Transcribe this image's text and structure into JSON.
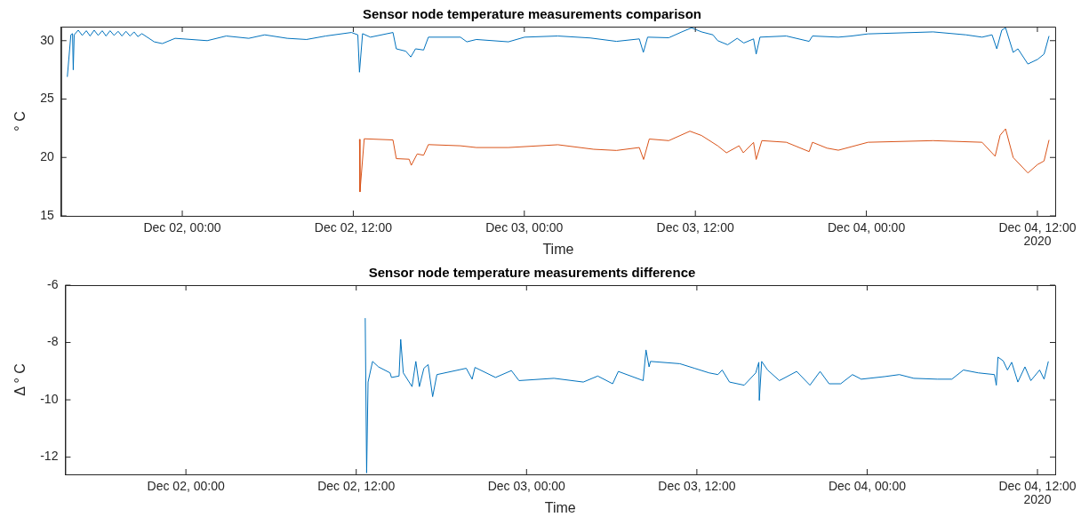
{
  "chart_data": [
    {
      "type": "line",
      "title": "Sensor node temperature measurements comparison",
      "xlabel": "Time",
      "ylabel": "° C",
      "annotations": [
        "2020"
      ],
      "xlim": [
        "2020-12-01T15:30",
        "2020-12-04T13:15"
      ],
      "ylim": [
        15,
        31.2
      ],
      "yticks": [
        15,
        20,
        25,
        30
      ],
      "xticks": [
        {
          "value": "2020-12-02T00:00",
          "label": "Dec 02, 00:00"
        },
        {
          "value": "2020-12-02T12:00",
          "label": "Dec 02, 12:00"
        },
        {
          "value": "2020-12-03T00:00",
          "label": "Dec 03, 00:00"
        },
        {
          "value": "2020-12-03T12:00",
          "label": "Dec 03, 12:00"
        },
        {
          "value": "2020-12-04T00:00",
          "label": "Dec 04, 00:00"
        },
        {
          "value": "2020-12-04T12:00",
          "label": "Dec 04, 12:00"
        }
      ],
      "grid": false,
      "legend": false,
      "marker": "none",
      "line_style": "solid",
      "series": [
        {
          "color": "#0072bd",
          "x": [
            "2020-12-01T15:56",
            "2020-12-01T16:11",
            "2020-12-01T16:18",
            "2020-12-01T16:21",
            "2020-12-01T16:25",
            "2020-12-01T16:42",
            "2020-12-01T16:59",
            "2020-12-01T17:16",
            "2020-12-01T17:32",
            "2020-12-01T17:49",
            "2020-12-01T18:06",
            "2020-12-01T18:23",
            "2020-12-01T18:39",
            "2020-12-01T18:56",
            "2020-12-01T19:13",
            "2020-12-01T19:30",
            "2020-12-01T19:46",
            "2020-12-01T20:03",
            "2020-12-01T20:20",
            "2020-12-01T20:37",
            "2020-12-01T20:53",
            "2020-12-01T21:10",
            "2020-12-01T22:02",
            "2020-12-01T22:36",
            "2020-12-01T23:30",
            "2020-12-02T01:45",
            "2020-12-02T03:05",
            "2020-12-02T04:40",
            "2020-12-02T05:47",
            "2020-12-02T07:22",
            "2020-12-02T08:43",
            "2020-12-02T10:04",
            "2020-12-02T11:52",
            "2020-12-02T12:19",
            "2020-12-02T12:26",
            "2020-12-02T12:39",
            "2020-12-02T13:12",
            "2020-12-02T14:47",
            "2020-12-02T15:01",
            "2020-12-02T15:41",
            "2020-12-02T16:02",
            "2020-12-02T16:22",
            "2020-12-02T16:56",
            "2020-12-02T17:16",
            "2020-12-02T19:31",
            "2020-12-02T19:58",
            "2020-12-02T20:38",
            "2020-12-02T22:53",
            "2020-12-03T00:01",
            "2020-12-03T02:21",
            "2020-12-03T04:38",
            "2020-12-03T06:28",
            "2020-12-03T08:04",
            "2020-12-03T08:21",
            "2020-12-03T08:39",
            "2020-12-03T10:08",
            "2020-12-03T11:03",
            "2020-12-03T11:44",
            "2020-12-03T12:26",
            "2020-12-03T13:14",
            "2020-12-03T13:34",
            "2020-12-03T14:16",
            "2020-12-03T14:56",
            "2020-12-03T15:24",
            "2020-12-03T16:05",
            "2020-12-03T16:16",
            "2020-12-03T16:32",
            "2020-12-03T18:23",
            "2020-12-03T19:59",
            "2020-12-03T20:13",
            "2020-12-03T22:02",
            "2020-12-03T22:58",
            "2020-12-04T00:07",
            "2020-12-04T04:41",
            "2020-12-04T06:59",
            "2020-12-04T08:07",
            "2020-12-04T08:49",
            "2020-12-04T09:09",
            "2020-12-04T09:30",
            "2020-12-04T09:46",
            "2020-12-04T10:18",
            "2020-12-04T10:38",
            "2020-12-04T11:20",
            "2020-12-04T12:01",
            "2020-12-04T12:28",
            "2020-12-04T12:49"
          ],
          "values": [
            26.9,
            30.5,
            30.6,
            27.5,
            30.5,
            30.9,
            30.45,
            30.85,
            30.4,
            30.9,
            30.45,
            30.85,
            30.4,
            30.85,
            30.45,
            30.8,
            30.4,
            30.8,
            30.4,
            30.75,
            30.35,
            30.6,
            29.9,
            29.75,
            30.2,
            30.0,
            30.4,
            30.2,
            30.5,
            30.2,
            30.1,
            30.4,
            30.7,
            30.5,
            27.3,
            30.6,
            30.3,
            30.7,
            29.3,
            29.1,
            28.6,
            29.3,
            29.2,
            30.3,
            30.3,
            29.9,
            30.1,
            29.9,
            30.3,
            30.4,
            30.23,
            29.94,
            30.15,
            29.0,
            30.3,
            30.25,
            30.75,
            31.1,
            30.75,
            30.5,
            30.0,
            29.65,
            30.2,
            29.8,
            30.15,
            28.85,
            30.3,
            30.4,
            29.94,
            30.4,
            30.3,
            30.4,
            30.58,
            30.75,
            30.5,
            30.3,
            30.5,
            29.3,
            30.9,
            31.1,
            29.0,
            29.3,
            28.0,
            28.4,
            28.85,
            30.4
          ]
        },
        {
          "color": "#d95319",
          "x": [
            "2020-12-02T12:26",
            "2020-12-02T12:28",
            "2020-12-02T12:46",
            "2020-12-02T14:47",
            "2020-12-02T15:01",
            "2020-12-02T15:55",
            "2020-12-02T16:04",
            "2020-12-02T16:29",
            "2020-12-02T16:56",
            "2020-12-02T17:16",
            "2020-12-02T19:31",
            "2020-12-02T20:38",
            "2020-12-02T22:53",
            "2020-12-03T02:21",
            "2020-12-03T04:52",
            "2020-12-03T06:28",
            "2020-12-03T08:04",
            "2020-12-03T08:22",
            "2020-12-03T08:46",
            "2020-12-03T10:08",
            "2020-12-03T11:37",
            "2020-12-03T12:26",
            "2020-12-03T13:34",
            "2020-12-03T14:11",
            "2020-12-03T15:04",
            "2020-12-03T15:22",
            "2020-12-03T16:05",
            "2020-12-03T16:16",
            "2020-12-03T16:40",
            "2020-12-03T18:23",
            "2020-12-03T19:59",
            "2020-12-03T20:13",
            "2020-12-03T21:14",
            "2020-12-03T22:02",
            "2020-12-04T00:07",
            "2020-12-04T04:41",
            "2020-12-04T08:07",
            "2020-12-04T09:02",
            "2020-12-04T09:23",
            "2020-12-04T09:46",
            "2020-12-04T10:18",
            "2020-12-04T11:20",
            "2020-12-04T12:01",
            "2020-12-04T12:28",
            "2020-12-04T12:49"
          ],
          "values": [
            21.56,
            17.05,
            21.6,
            21.5,
            19.9,
            19.85,
            19.33,
            20.3,
            20.19,
            21.1,
            21.0,
            20.85,
            20.85,
            21.09,
            20.7,
            20.6,
            20.85,
            19.83,
            21.58,
            21.44,
            22.25,
            21.88,
            21.0,
            20.4,
            21.0,
            20.4,
            21.29,
            19.83,
            21.44,
            21.3,
            20.5,
            21.3,
            20.8,
            20.62,
            21.3,
            21.44,
            21.3,
            20.1,
            21.9,
            22.45,
            20.0,
            18.67,
            19.4,
            19.7,
            21.5
          ]
        }
      ]
    },
    {
      "type": "line",
      "title": "Sensor node temperature measurements difference",
      "xlabel": "Time",
      "ylabel": "Δ ° C",
      "annotations": [
        "2020"
      ],
      "xlim": [
        "2020-12-01T15:30",
        "2020-12-04T13:15"
      ],
      "ylim": [
        -12.6,
        -6
      ],
      "yticks": [
        -12,
        -10,
        -8,
        -6
      ],
      "xticks": [
        {
          "value": "2020-12-02T00:00",
          "label": "Dec 02, 00:00"
        },
        {
          "value": "2020-12-02T12:00",
          "label": "Dec 02, 12:00"
        },
        {
          "value": "2020-12-03T00:00",
          "label": "Dec 03, 00:00"
        },
        {
          "value": "2020-12-03T12:00",
          "label": "Dec 03, 12:00"
        },
        {
          "value": "2020-12-04T00:00",
          "label": "Dec 04, 00:00"
        },
        {
          "value": "2020-12-04T12:00",
          "label": "Dec 04, 12:00"
        }
      ],
      "grid": false,
      "legend": false,
      "marker": "none",
      "line_style": "solid",
      "series": [
        {
          "color": "#0072bd",
          "x": [
            "2020-12-02T12:38",
            "2020-12-02T12:44",
            "2020-12-02T12:50",
            "2020-12-02T13:09",
            "2020-12-02T13:34",
            "2020-12-02T14:23",
            "2020-12-02T14:29",
            "2020-12-02T15:01",
            "2020-12-02T15:08",
            "2020-12-02T15:19",
            "2020-12-02T15:56",
            "2020-12-02T16:12",
            "2020-12-02T16:27",
            "2020-12-02T16:46",
            "2020-12-02T17:04",
            "2020-12-02T17:23",
            "2020-12-02T17:41",
            "2020-12-02T19:45",
            "2020-12-02T20:10",
            "2020-12-02T20:22",
            "2020-12-02T21:49",
            "2020-12-02T22:56",
            "2020-12-02T23:28",
            "2020-12-03T01:56",
            "2020-12-03T04:00",
            "2020-12-03T05:01",
            "2020-12-03T06:04",
            "2020-12-03T06:28",
            "2020-12-03T08:13",
            "2020-12-03T08:25",
            "2020-12-03T08:38",
            "2020-12-03T08:44",
            "2020-12-03T10:48",
            "2020-12-03T11:50",
            "2020-12-03T12:52",
            "2020-12-03T13:29",
            "2020-12-03T13:47",
            "2020-12-03T14:18",
            "2020-12-03T15:20",
            "2020-12-03T16:09",
            "2020-12-03T16:22",
            "2020-12-03T16:24",
            "2020-12-03T16:34",
            "2020-12-03T16:59",
            "2020-12-03T17:49",
            "2020-12-03T19:02",
            "2020-12-03T19:58",
            "2020-12-03T20:41",
            "2020-12-03T21:19",
            "2020-12-03T22:08",
            "2020-12-03T22:58",
            "2020-12-03T23:35",
            "2020-12-04T01:14",
            "2020-12-04T02:16",
            "2020-12-04T03:17",
            "2020-12-04T04:56",
            "2020-12-04T05:58",
            "2020-12-04T06:47",
            "2020-12-04T07:50",
            "2020-12-04T08:58",
            "2020-12-04T09:06",
            "2020-12-04T09:13",
            "2020-12-04T09:35",
            "2020-12-04T09:53",
            "2020-12-04T10:11",
            "2020-12-04T10:37",
            "2020-12-04T11:07",
            "2020-12-04T11:32",
            "2020-12-04T12:09",
            "2020-12-04T12:28",
            "2020-12-04T12:46"
          ],
          "values": [
            -7.15,
            -12.55,
            -9.38,
            -8.66,
            -8.85,
            -9.06,
            -9.22,
            -9.17,
            -7.89,
            -9.06,
            -9.54,
            -8.66,
            -9.54,
            -8.9,
            -8.77,
            -9.89,
            -9.12,
            -8.9,
            -9.28,
            -8.87,
            -9.22,
            -8.98,
            -9.33,
            -9.25,
            -9.38,
            -9.17,
            -9.44,
            -9.01,
            -9.33,
            -8.26,
            -8.85,
            -8.66,
            -8.74,
            -8.9,
            -9.06,
            -9.12,
            -8.96,
            -9.38,
            -9.49,
            -9.06,
            -8.69,
            -10.02,
            -8.66,
            -8.96,
            -9.33,
            -9.01,
            -9.49,
            -9.01,
            -9.44,
            -9.44,
            -9.12,
            -9.28,
            -9.19,
            -9.12,
            -9.25,
            -9.28,
            -9.28,
            -8.96,
            -9.06,
            -9.12,
            -9.49,
            -8.51,
            -8.64,
            -8.96,
            -8.69,
            -9.38,
            -8.85,
            -9.33,
            -8.96,
            -9.28,
            -8.66
          ]
        }
      ]
    }
  ]
}
